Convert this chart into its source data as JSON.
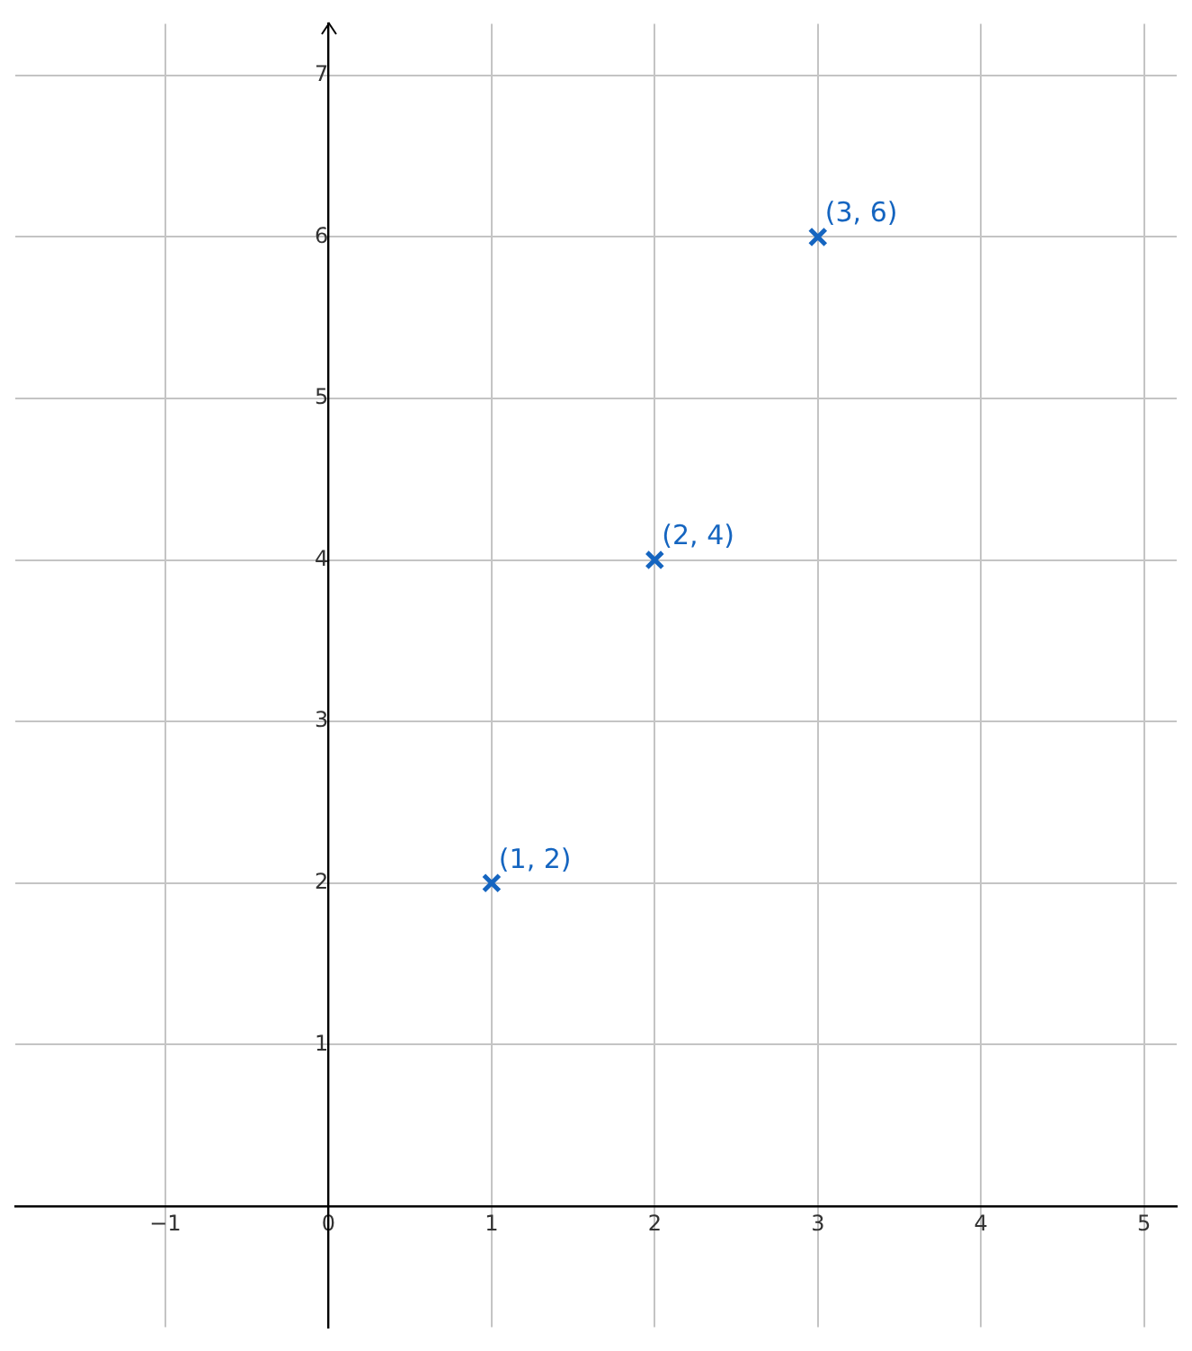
{
  "chart_data": {
    "type": "scatter",
    "x": [
      1,
      2,
      3
    ],
    "values": [
      2,
      4,
      6
    ],
    "color": "#1565c0",
    "marker": "cross",
    "xlim": [
      -1.92,
      5.2
    ],
    "ylim": [
      -0.75,
      7.32
    ],
    "xticks": [
      {
        "value": -1,
        "label": "−1"
      },
      0,
      1,
      2,
      3,
      4,
      5
    ],
    "yticks": [
      1,
      2,
      3,
      4,
      5,
      6,
      7
    ],
    "grid": true,
    "legend": false,
    "annotations": [
      {
        "text": "(1, 2)",
        "x": 1,
        "y": 2
      },
      {
        "text": "(2, 4)",
        "x": 2,
        "y": 4
      },
      {
        "text": "(3, 6)",
        "x": 3,
        "y": 6
      }
    ]
  }
}
